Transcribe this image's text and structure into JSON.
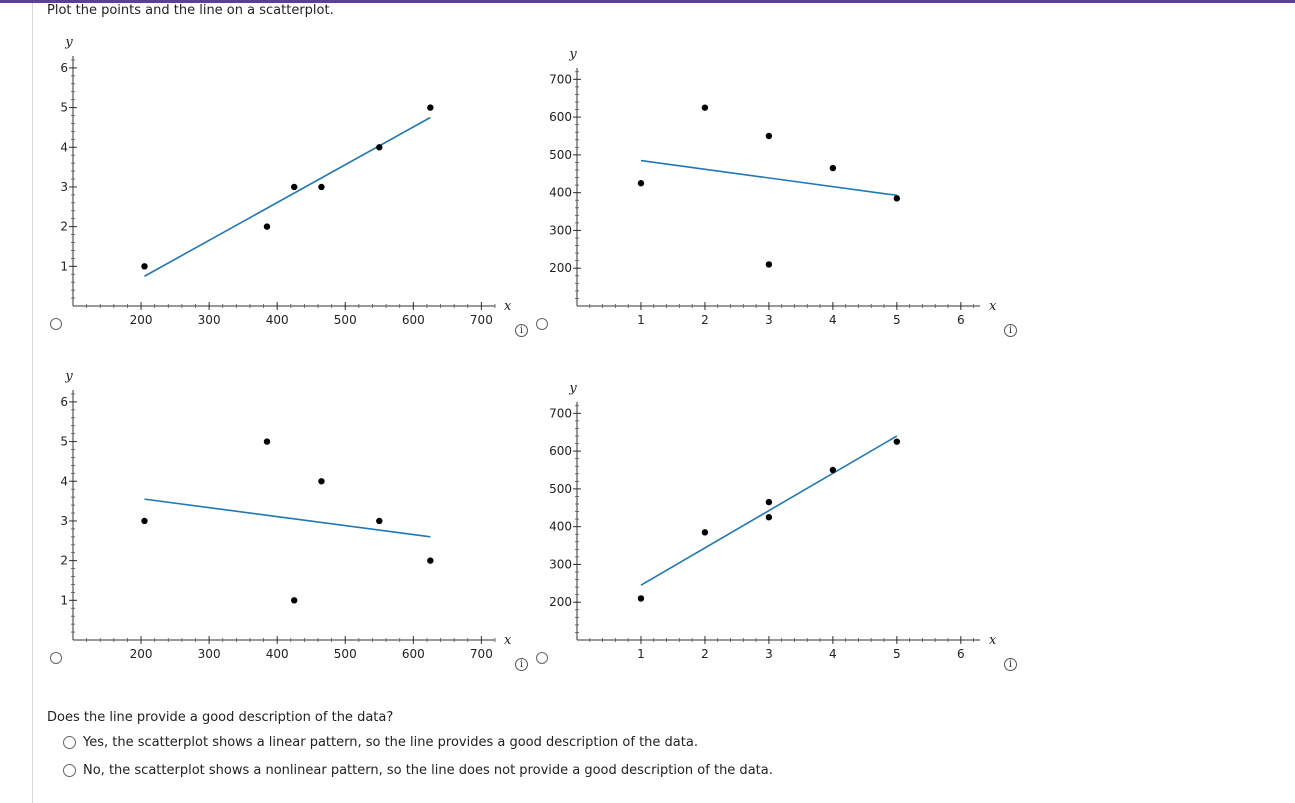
{
  "instruction": "Plot the points and the line on a scatterplot.",
  "info_glyph": "i",
  "question": "Does the line provide a good description of the data?",
  "choices": [
    {
      "label": "Yes, the scatterplot shows a linear pattern, so the line provides a good description of the data."
    },
    {
      "label": "No, the scatterplot shows a nonlinear pattern, so the line does not provide a good description of the data."
    }
  ],
  "colors": {
    "line": "#1f77b4",
    "point": "#000000",
    "accent": "#5b3f9e"
  },
  "chart_data": [
    {
      "type": "scatter",
      "xlabel": "x",
      "ylabel": "y",
      "xlim": [
        100,
        720
      ],
      "ylim": [
        0,
        6.3
      ],
      "xticks": [
        200,
        300,
        400,
        500,
        600,
        700
      ],
      "yticks": [
        1,
        2,
        3,
        4,
        5,
        6
      ],
      "points": [
        [
          205,
          1
        ],
        [
          385,
          2
        ],
        [
          425,
          3
        ],
        [
          465,
          3
        ],
        [
          550,
          4
        ],
        [
          625,
          5
        ]
      ],
      "line": [
        [
          205,
          0.75
        ],
        [
          625,
          4.75
        ]
      ]
    },
    {
      "type": "scatter",
      "xlabel": "x",
      "ylabel": "y",
      "xlim": [
        0,
        6.3
      ],
      "ylim": [
        100,
        730
      ],
      "xticks": [
        1,
        2,
        3,
        4,
        5,
        6
      ],
      "yticks": [
        200,
        300,
        400,
        500,
        600,
        700
      ],
      "points": [
        [
          1,
          425
        ],
        [
          2,
          625
        ],
        [
          3,
          550
        ],
        [
          3,
          210
        ],
        [
          4,
          465
        ],
        [
          5,
          385
        ]
      ],
      "line": [
        [
          1,
          485
        ],
        [
          5,
          393
        ]
      ]
    },
    {
      "type": "scatter",
      "xlabel": "x",
      "ylabel": "y",
      "xlim": [
        100,
        720
      ],
      "ylim": [
        0,
        6.3
      ],
      "xticks": [
        200,
        300,
        400,
        500,
        600,
        700
      ],
      "yticks": [
        1,
        2,
        3,
        4,
        5,
        6
      ],
      "points": [
        [
          205,
          3
        ],
        [
          385,
          5
        ],
        [
          425,
          1
        ],
        [
          465,
          4
        ],
        [
          550,
          3
        ],
        [
          625,
          2
        ]
      ],
      "line": [
        [
          205,
          3.55
        ],
        [
          625,
          2.6
        ]
      ]
    },
    {
      "type": "scatter",
      "xlabel": "x",
      "ylabel": "y",
      "xlim": [
        0,
        6.3
      ],
      "ylim": [
        100,
        730
      ],
      "xticks": [
        1,
        2,
        3,
        4,
        5,
        6
      ],
      "yticks": [
        200,
        300,
        400,
        500,
        600,
        700
      ],
      "points": [
        [
          1,
          210
        ],
        [
          2,
          385
        ],
        [
          3,
          465
        ],
        [
          3,
          425
        ],
        [
          4,
          550
        ],
        [
          5,
          625
        ]
      ],
      "line": [
        [
          1,
          245
        ],
        [
          5,
          640
        ]
      ]
    }
  ]
}
